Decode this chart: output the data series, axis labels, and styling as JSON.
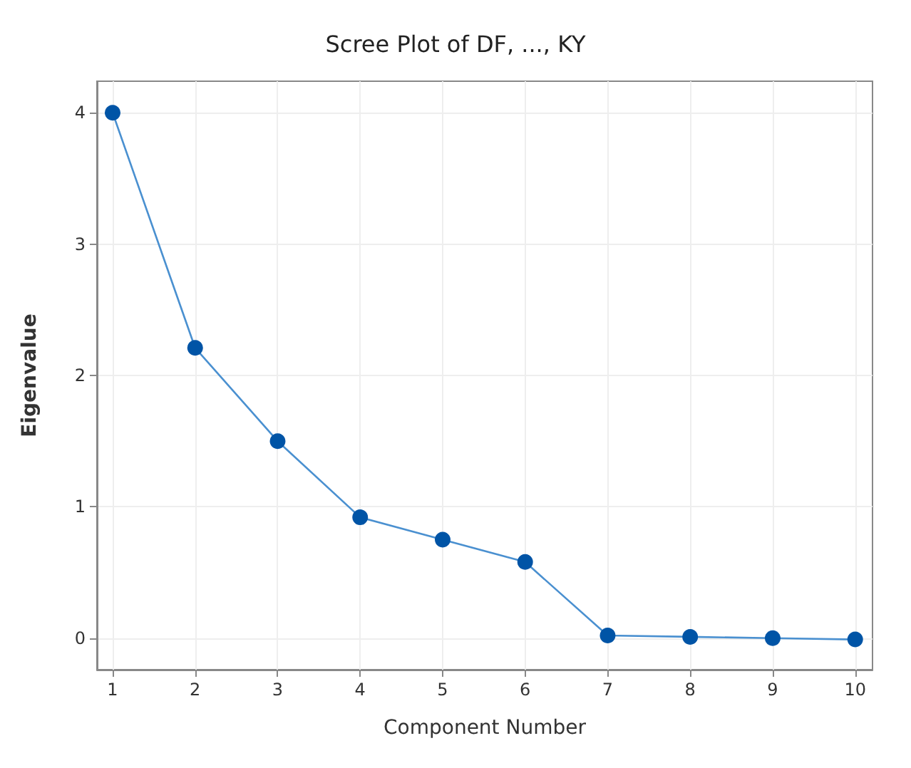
{
  "chart_data": {
    "type": "line",
    "title": "Scree Plot of DF, ..., KY",
    "xlabel": "Component Number",
    "ylabel": "Eigenvalue",
    "x": [
      1,
      2,
      3,
      4,
      5,
      6,
      7,
      8,
      9,
      10
    ],
    "series": [
      {
        "color": "#0054a6",
        "values": [
          4.0,
          2.21,
          1.5,
          0.92,
          0.75,
          0.58,
          0.02,
          0.01,
          0.0,
          -0.01
        ]
      }
    ],
    "xlim": [
      0.81,
      10.21
    ],
    "xticks": [
      1,
      2,
      3,
      4,
      5,
      6,
      7,
      8,
      9,
      10
    ],
    "ylim": [
      -0.24,
      4.24
    ],
    "yticks": [
      0,
      1,
      2,
      3,
      4
    ],
    "grid": true,
    "marker": "circle",
    "line_style": "solid"
  }
}
